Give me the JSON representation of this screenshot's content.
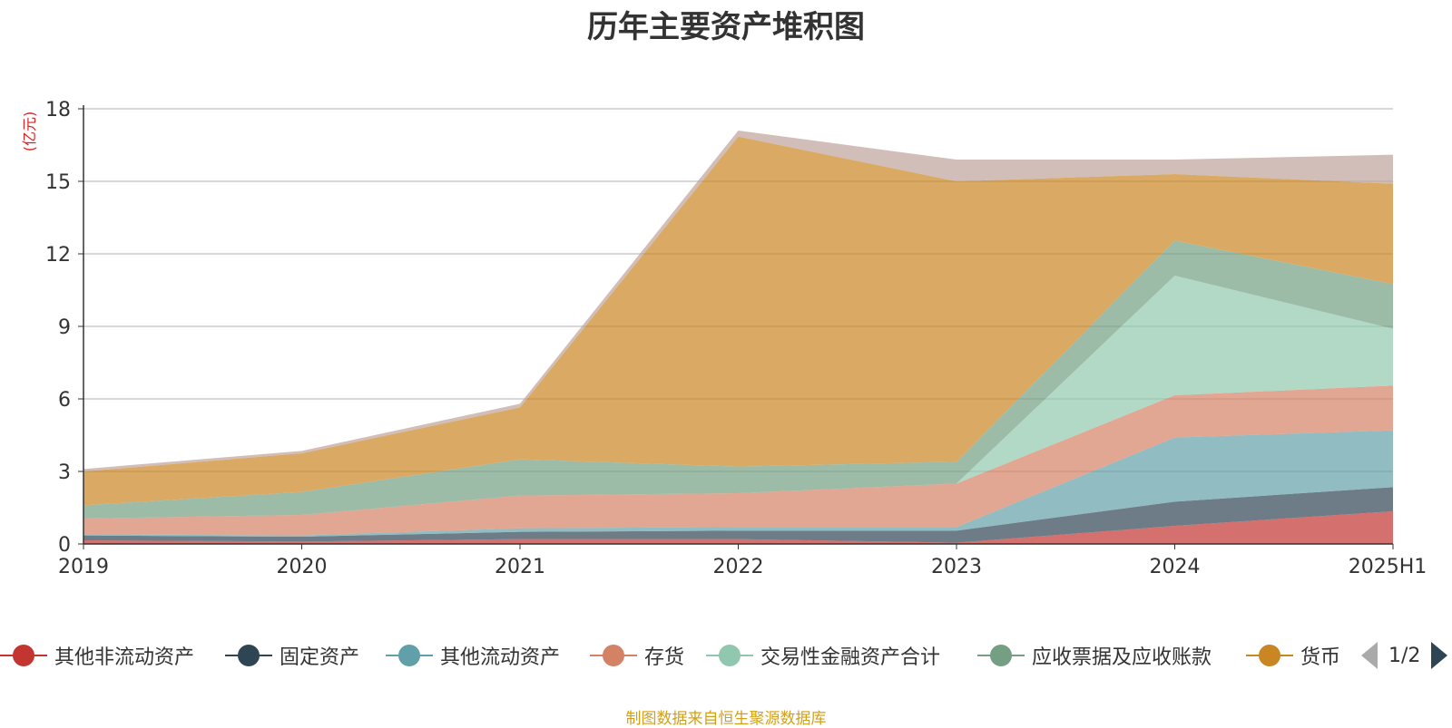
{
  "chart_data": {
    "type": "area",
    "stacked": true,
    "title": "历年主要资产堆积图",
    "ylabel": "(亿元)",
    "xlabel": "",
    "categories": [
      "2019",
      "2020",
      "2021",
      "2022",
      "2023",
      "2024",
      "2025H1"
    ],
    "ylim": [
      0,
      18
    ],
    "yticks": [
      0,
      3,
      6,
      9,
      12,
      15,
      18
    ],
    "grid": true,
    "legend_position": "bottom",
    "series": [
      {
        "name": "其他非流动资产",
        "color": "#c23531",
        "values": [
          0.15,
          0.1,
          0.2,
          0.2,
          0.05,
          0.75,
          1.35
        ]
      },
      {
        "name": "固定资产",
        "color": "#2f4554",
        "values": [
          0.2,
          0.2,
          0.3,
          0.35,
          0.5,
          1.0,
          1.0
        ]
      },
      {
        "name": "其他流动资产",
        "color": "#61a0a8",
        "values": [
          0.05,
          0.05,
          0.15,
          0.15,
          0.15,
          2.65,
          2.35
        ]
      },
      {
        "name": "存货",
        "color": "#d48265",
        "values": [
          0.65,
          0.85,
          1.35,
          1.4,
          1.8,
          1.75,
          1.85
        ]
      },
      {
        "name": "交易性金融资产合计",
        "color": "#91c7ae",
        "values": [
          0.0,
          0.0,
          0.0,
          0.0,
          0.0,
          4.95,
          2.35
        ]
      },
      {
        "name": "应收票据及应收账款",
        "color": "#749f83",
        "values": [
          0.55,
          0.95,
          1.5,
          1.1,
          0.9,
          1.45,
          1.85
        ]
      },
      {
        "name": "货币",
        "color": "#ca8622",
        "values": [
          1.4,
          1.6,
          2.15,
          13.65,
          11.6,
          2.75,
          4.15
        ]
      },
      {
        "name": "",
        "color": "#bda29a",
        "values": [
          0.1,
          0.1,
          0.15,
          0.25,
          0.9,
          0.6,
          1.2
        ]
      }
    ]
  },
  "legend": {
    "items": [
      {
        "name": "其他非流动资产",
        "color": "#c23531"
      },
      {
        "name": "固定资产",
        "color": "#2f4554"
      },
      {
        "name": "其他流动资产",
        "color": "#61a0a8"
      },
      {
        "name": "存货",
        "color": "#d48265"
      },
      {
        "name": "交易性金融资产合计",
        "color": "#91c7ae"
      },
      {
        "name": "应收票据及应收账款",
        "color": "#749f83"
      },
      {
        "name": "货币",
        "color": "#ca8622"
      }
    ],
    "page": "1/2",
    "prev_icon": "triangle-left-icon",
    "next_icon": "triangle-right-icon"
  },
  "source": "制图数据来自恒生聚源数据库"
}
